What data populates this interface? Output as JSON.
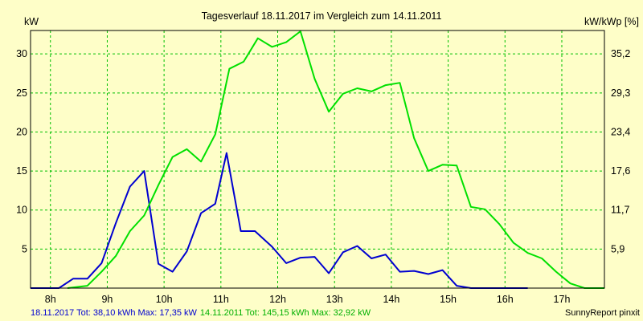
{
  "chart_data": {
    "type": "line",
    "title": "Tagesverlauf 18.11.2017 im Vergleich zum 14.11.2011",
    "ylabel_left": "kW",
    "ylabel_right": "kW/kWp [%]",
    "x_ticks": [
      "8h",
      "9h",
      "10h",
      "11h",
      "12h",
      "13h",
      "14h",
      "15h",
      "16h",
      "17h"
    ],
    "xlim": [
      7.65,
      17.75
    ],
    "y_ticks_left": [
      "5",
      "10",
      "15",
      "20",
      "25",
      "30"
    ],
    "y_ticks_right": [
      "5,9",
      "11,7",
      "17,6",
      "23,4",
      "29,3",
      "35,2"
    ],
    "ylim": [
      0,
      33
    ],
    "grid": true,
    "series": [
      {
        "name": "18.11.2017",
        "color": "#0000d0",
        "x": [
          7.65,
          8.15,
          8.4,
          8.65,
          8.9,
          9.15,
          9.4,
          9.65,
          9.9,
          10.15,
          10.4,
          10.65,
          10.9,
          11.1,
          11.35,
          11.6,
          11.9,
          12.15,
          12.4,
          12.65,
          12.9,
          13.15,
          13.4,
          13.65,
          13.9,
          14.15,
          14.4,
          14.65,
          14.9,
          15.15,
          15.4,
          16.4
        ],
        "values": [
          0,
          0,
          1.2,
          1.2,
          3.2,
          8.3,
          13,
          15,
          3.1,
          2.1,
          4.7,
          9.6,
          10.8,
          17.3,
          7.3,
          7.3,
          5.3,
          3.2,
          3.9,
          4.0,
          1.9,
          4.6,
          5.4,
          3.8,
          4.3,
          2.1,
          2.2,
          1.8,
          2.3,
          0.3,
          0,
          0
        ]
      },
      {
        "name": "14.11.2011",
        "color": "#00e000",
        "x": [
          8.3,
          8.65,
          8.9,
          9.15,
          9.4,
          9.65,
          9.9,
          10.15,
          10.4,
          10.65,
          10.9,
          11.15,
          11.4,
          11.65,
          11.9,
          12.15,
          12.4,
          12.65,
          12.9,
          13.15,
          13.4,
          13.65,
          13.9,
          14.15,
          14.4,
          14.65,
          14.9,
          15.15,
          15.4,
          15.65,
          15.9,
          16.15,
          16.4,
          16.65,
          16.9,
          17.15,
          17.4,
          17.75
        ],
        "values": [
          0,
          0.3,
          2.1,
          4.1,
          7.3,
          9.3,
          13.2,
          16.8,
          17.8,
          16.2,
          19.7,
          28.1,
          29.0,
          32.0,
          30.9,
          31.5,
          32.9,
          26.8,
          22.6,
          24.9,
          25.6,
          25.2,
          26.0,
          26.3,
          19.2,
          15.0,
          15.8,
          15.7,
          10.4,
          10.1,
          8.2,
          5.8,
          4.5,
          3.8,
          2.1,
          0.6,
          0,
          0
        ]
      }
    ]
  },
  "footer": {
    "series1_summary": "18.11.2017 Tot: 38,10 kWh Max: 17,35 kW",
    "series2_summary": "14.11.2011 Tot: 145,15 kWh Max: 32,92 kW",
    "credit": "SunnyReport pinxit"
  },
  "colors": {
    "background": "#fefec8",
    "grid": "#00c000",
    "axis": "#000000"
  }
}
